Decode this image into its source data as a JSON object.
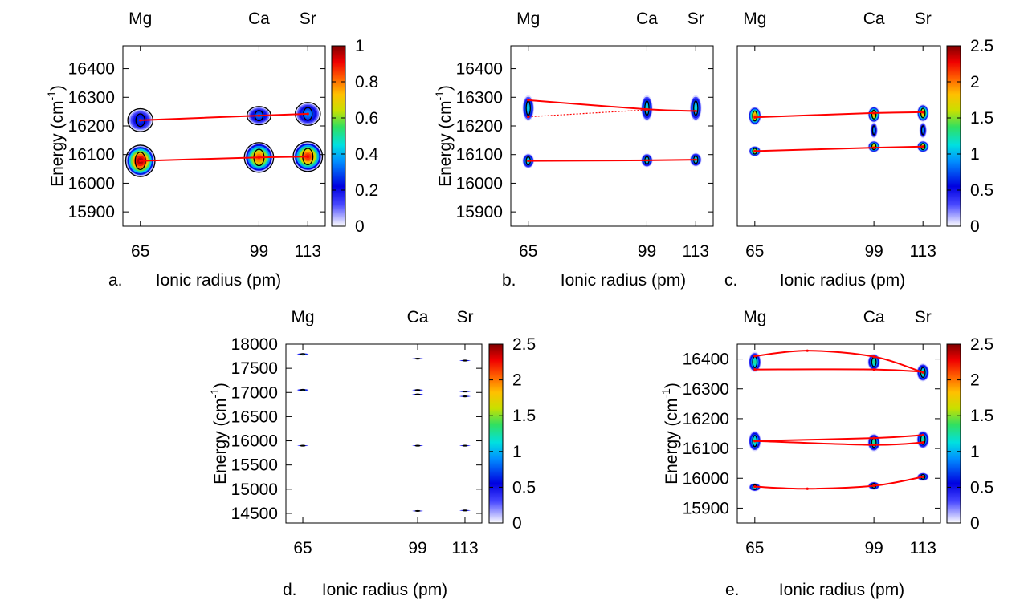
{
  "figure": {
    "panels": [
      "a",
      "b",
      "c",
      "d",
      "e"
    ]
  },
  "chart_data": [
    {
      "panel_label": "a.",
      "type": "heatmap",
      "xlabel": "Ionic radius (pm)",
      "ylabel": "Energy (cm",
      "ylabel_sup": "-1",
      "ylabel_close": ")",
      "x_ticks": [
        65,
        99,
        113
      ],
      "x_tick_labels": [
        "65",
        "99",
        "113"
      ],
      "top_ticks": [
        65,
        99,
        113
      ],
      "top_tick_labels": [
        "Mg",
        "Ca",
        "Sr"
      ],
      "y_ticks": [
        15900,
        16000,
        16100,
        16200,
        16300,
        16400
      ],
      "y_tick_labels": [
        "15900",
        "16000",
        "16100",
        "16200",
        "16300",
        "16400"
      ],
      "xlim": [
        60,
        118
      ],
      "ylim": [
        15850,
        16480
      ],
      "colorbar": {
        "range": [
          0,
          1
        ],
        "ticks": [
          0,
          0.2,
          0.4,
          0.6,
          0.8,
          1
        ],
        "tick_labels": [
          "0",
          "0.2",
          "0.4",
          "0.6",
          "0.8",
          "1"
        ]
      },
      "blobs": [
        {
          "x": 65,
          "y": 16078,
          "rx": 4.2,
          "ry": 55,
          "peak": 1.0
        },
        {
          "x": 99,
          "y": 16090,
          "rx": 4.2,
          "ry": 52,
          "peak": 0.85
        },
        {
          "x": 113,
          "y": 16093,
          "rx": 4.2,
          "ry": 52,
          "peak": 0.9
        },
        {
          "x": 65,
          "y": 16220,
          "rx": 3.6,
          "ry": 40,
          "peak": 0.28
        },
        {
          "x": 99,
          "y": 16236,
          "rx": 3.4,
          "ry": 32,
          "peak": 0.33
        },
        {
          "x": 113,
          "y": 16242,
          "rx": 3.6,
          "ry": 40,
          "peak": 0.36
        }
      ],
      "outlines": [
        {
          "x": 65,
          "y": 16078,
          "rx": 4.2,
          "ry": 55
        },
        {
          "x": 99,
          "y": 16090,
          "rx": 4.2,
          "ry": 52
        },
        {
          "x": 113,
          "y": 16093,
          "rx": 4.2,
          "ry": 52
        },
        {
          "x": 65,
          "y": 16220,
          "rx": 3.6,
          "ry": 40
        },
        {
          "x": 99,
          "y": 16236,
          "rx": 3.4,
          "ry": 32
        },
        {
          "x": 113,
          "y": 16242,
          "rx": 3.6,
          "ry": 40
        }
      ],
      "lines": [
        {
          "points": [
            [
              65,
              16078
            ],
            [
              99,
              16090
            ],
            [
              113,
              16093
            ]
          ],
          "dashed": false
        },
        {
          "points": [
            [
              65,
              16220
            ],
            [
              99,
              16236
            ],
            [
              113,
              16242
            ]
          ],
          "dashed": false
        }
      ]
    },
    {
      "panel_label": "b.",
      "type": "heatmap",
      "xlabel": "Ionic radius (pm)",
      "ylabel": "Energy (cm",
      "ylabel_sup": "-1",
      "ylabel_close": ")",
      "x_ticks": [
        65,
        99,
        113
      ],
      "x_tick_labels": [
        "65",
        "99",
        "113"
      ],
      "top_ticks": [
        65,
        99,
        113
      ],
      "top_tick_labels": [
        "Mg",
        "Ca",
        "Sr"
      ],
      "y_ticks": [
        15900,
        16000,
        16100,
        16200,
        16300,
        16400
      ],
      "y_tick_labels": [
        "15900",
        "16000",
        "16100",
        "16200",
        "16300",
        "16400"
      ],
      "xlim": [
        60,
        118
      ],
      "ylim": [
        15850,
        16480
      ],
      "blobs": [
        {
          "x": 65,
          "y": 16078,
          "rx": 1.7,
          "ry": 26,
          "peak": 1.2
        },
        {
          "x": 99,
          "y": 16080,
          "rx": 1.7,
          "ry": 24,
          "peak": 1.2
        },
        {
          "x": 113,
          "y": 16082,
          "rx": 1.7,
          "ry": 24,
          "peak": 1.2
        },
        {
          "x": 65,
          "y": 16262,
          "rx": 1.7,
          "ry": 45,
          "peak": 1.1
        },
        {
          "x": 99,
          "y": 16262,
          "rx": 1.7,
          "ry": 45,
          "peak": 1.15
        },
        {
          "x": 113,
          "y": 16262,
          "rx": 1.7,
          "ry": 45,
          "peak": 1.15
        }
      ],
      "lines": [
        {
          "points": [
            [
              65,
              16078
            ],
            [
              99,
              16080
            ],
            [
              113,
              16082
            ]
          ],
          "dashed": false
        },
        {
          "points": [
            [
              65,
              16290
            ],
            [
              99,
              16258
            ],
            [
              113,
              16252
            ]
          ],
          "dashed": false
        },
        {
          "points": [
            [
              65,
              16232
            ],
            [
              99,
              16256
            ]
          ],
          "dashed": true
        }
      ]
    },
    {
      "panel_label": "c.",
      "type": "heatmap",
      "xlabel": "Ionic radius (pm)",
      "x_ticks": [
        65,
        99,
        113
      ],
      "x_tick_labels": [
        "65",
        "99",
        "113"
      ],
      "top_ticks": [
        65,
        99,
        113
      ],
      "top_tick_labels": [
        "Mg",
        "Ca",
        "Sr"
      ],
      "xlim": [
        60,
        118
      ],
      "ylim": [
        15850,
        16480
      ],
      "colorbar": {
        "range": [
          0,
          2.5
        ],
        "ticks": [
          0,
          0.5,
          1,
          1.5,
          2,
          2.5
        ],
        "tick_labels": [
          "0",
          "0.5",
          "1",
          "1.5",
          "2",
          "2.5"
        ]
      },
      "blobs": [
        {
          "x": 65,
          "y": 16112,
          "rx": 1.7,
          "ry": 18,
          "peak": 1.7
        },
        {
          "x": 65,
          "y": 16235,
          "rx": 1.8,
          "ry": 32,
          "peak": 2.0
        },
        {
          "x": 99,
          "y": 16128,
          "rx": 1.7,
          "ry": 20,
          "peak": 1.8
        },
        {
          "x": 99,
          "y": 16240,
          "rx": 1.7,
          "ry": 28,
          "peak": 1.9
        },
        {
          "x": 99,
          "y": 16185,
          "rx": 1.1,
          "ry": 28,
          "peak": 0.9
        },
        {
          "x": 113,
          "y": 16128,
          "rx": 1.7,
          "ry": 20,
          "peak": 1.8
        },
        {
          "x": 113,
          "y": 16245,
          "rx": 1.7,
          "ry": 30,
          "peak": 1.9
        },
        {
          "x": 113,
          "y": 16185,
          "rx": 1.1,
          "ry": 28,
          "peak": 0.9
        }
      ],
      "lines": [
        {
          "points": [
            [
              65,
              16112
            ],
            [
              99,
              16124
            ],
            [
              113,
              16128
            ]
          ],
          "dashed": false
        },
        {
          "points": [
            [
              65,
              16230
            ],
            [
              99,
              16245
            ],
            [
              113,
              16248
            ]
          ],
          "dashed": false
        }
      ]
    },
    {
      "panel_label": "d.",
      "type": "heatmap",
      "xlabel": "Ionic radius (pm)",
      "ylabel": "Energy (cm",
      "ylabel_sup": "-1",
      "ylabel_close": ")",
      "x_ticks": [
        65,
        99,
        113
      ],
      "x_tick_labels": [
        "65",
        "99",
        "113"
      ],
      "top_ticks": [
        65,
        99,
        113
      ],
      "top_tick_labels": [
        "Mg",
        "Ca",
        "Sr"
      ],
      "y_ticks": [
        14500,
        15000,
        15500,
        16000,
        16500,
        17000,
        17500,
        18000
      ],
      "y_tick_labels": [
        "14500",
        "15000",
        "15500",
        "16000",
        "16500",
        "17000",
        "17500",
        "18000"
      ],
      "xlim": [
        60,
        118
      ],
      "ylim": [
        14300,
        18000
      ],
      "colorbar": {
        "range": [
          0,
          2.5
        ],
        "ticks": [
          0,
          0.5,
          1,
          1.5,
          2,
          2.5
        ],
        "tick_labels": [
          "0",
          "0.5",
          "1",
          "1.5",
          "2",
          "2.5"
        ]
      },
      "blobs": [
        {
          "x": 65,
          "y": 17790,
          "rx": 1.8,
          "ry": 24,
          "peak": 1.1
        },
        {
          "x": 65,
          "y": 17050,
          "rx": 1.8,
          "ry": 22,
          "peak": 1.1
        },
        {
          "x": 65,
          "y": 15900,
          "rx": 1.8,
          "ry": 12,
          "peak": 0.7
        },
        {
          "x": 99,
          "y": 17700,
          "rx": 1.8,
          "ry": 14,
          "peak": 0.8
        },
        {
          "x": 99,
          "y": 17050,
          "rx": 1.8,
          "ry": 14,
          "peak": 0.9
        },
        {
          "x": 99,
          "y": 16960,
          "rx": 1.8,
          "ry": 14,
          "peak": 0.9
        },
        {
          "x": 99,
          "y": 15900,
          "rx": 1.8,
          "ry": 12,
          "peak": 0.7
        },
        {
          "x": 99,
          "y": 14550,
          "rx": 1.8,
          "ry": 12,
          "peak": 0.7
        },
        {
          "x": 113,
          "y": 17660,
          "rx": 1.8,
          "ry": 14,
          "peak": 0.8
        },
        {
          "x": 113,
          "y": 17020,
          "rx": 1.8,
          "ry": 14,
          "peak": 0.9
        },
        {
          "x": 113,
          "y": 16920,
          "rx": 1.8,
          "ry": 14,
          "peak": 0.9
        },
        {
          "x": 113,
          "y": 15900,
          "rx": 1.8,
          "ry": 12,
          "peak": 0.7
        },
        {
          "x": 113,
          "y": 14560,
          "rx": 1.8,
          "ry": 12,
          "peak": 0.7
        }
      ],
      "lines": []
    },
    {
      "panel_label": "e.",
      "type": "heatmap",
      "xlabel": "Ionic radius (pm)",
      "ylabel": "Energy (cm",
      "ylabel_sup": "-1",
      "ylabel_close": ")",
      "x_ticks": [
        65,
        99,
        113
      ],
      "x_tick_labels": [
        "65",
        "99",
        "113"
      ],
      "top_ticks": [
        65,
        99,
        113
      ],
      "top_tick_labels": [
        "Mg",
        "Ca",
        "Sr"
      ],
      "y_ticks": [
        15900,
        16000,
        16100,
        16200,
        16300,
        16400
      ],
      "y_tick_labels": [
        "15900",
        "16000",
        "16100",
        "16200",
        "16300",
        "16400"
      ],
      "xlim": [
        60,
        118
      ],
      "ylim": [
        15850,
        16450
      ],
      "colorbar": {
        "range": [
          0,
          2.5
        ],
        "ticks": [
          0,
          0.5,
          1,
          1.5,
          2,
          2.5
        ],
        "tick_labels": [
          "0",
          "0.5",
          "1",
          "1.5",
          "2",
          "2.5"
        ]
      },
      "blobs": [
        {
          "x": 65,
          "y": 16390,
          "rx": 1.8,
          "ry": 34,
          "peak": 1.3
        },
        {
          "x": 65,
          "y": 16125,
          "rx": 1.8,
          "ry": 34,
          "peak": 1.3
        },
        {
          "x": 65,
          "y": 15970,
          "rx": 1.7,
          "ry": 14,
          "peak": 1.2
        },
        {
          "x": 99,
          "y": 16390,
          "rx": 1.8,
          "ry": 28,
          "peak": 1.3
        },
        {
          "x": 99,
          "y": 16120,
          "rx": 1.8,
          "ry": 30,
          "peak": 1.3
        },
        {
          "x": 99,
          "y": 15975,
          "rx": 1.7,
          "ry": 14,
          "peak": 1.2
        },
        {
          "x": 113,
          "y": 16355,
          "rx": 1.8,
          "ry": 30,
          "peak": 1.3
        },
        {
          "x": 113,
          "y": 16130,
          "rx": 1.8,
          "ry": 30,
          "peak": 1.3
        },
        {
          "x": 113,
          "y": 16005,
          "rx": 1.7,
          "ry": 14,
          "peak": 1.2
        }
      ],
      "lines": [
        {
          "points": [
            [
              65,
              16410
            ],
            [
              80,
              16428
            ],
            [
              99,
              16408
            ],
            [
              113,
              16355
            ]
          ],
          "dashed": false
        },
        {
          "points": [
            [
              65,
              16365
            ],
            [
              99,
              16365
            ],
            [
              113,
              16357
            ]
          ],
          "dashed": false
        },
        {
          "points": [
            [
              65,
              16125
            ],
            [
              99,
              16135
            ],
            [
              113,
              16145
            ]
          ],
          "dashed": false
        },
        {
          "points": [
            [
              65,
              16125
            ],
            [
              99,
              16112
            ],
            [
              113,
              16120
            ]
          ],
          "dashed": false
        },
        {
          "points": [
            [
              65,
              15972
            ],
            [
              80,
              15965
            ],
            [
              99,
              15975
            ],
            [
              113,
              16005
            ]
          ],
          "dashed": false
        }
      ]
    }
  ]
}
